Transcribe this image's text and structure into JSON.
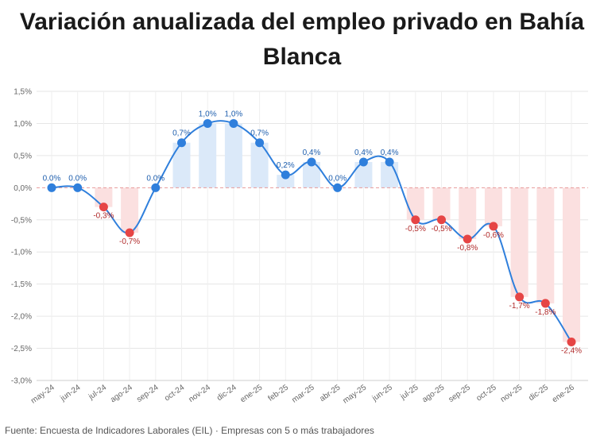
{
  "chart_data": {
    "type": "line",
    "title": "Variación anualizada del empleo privado en Bahía Blanca",
    "xlabel": "",
    "ylabel": "",
    "ylim": [
      -3.0,
      1.5
    ],
    "yticks": [
      1.5,
      1.0,
      0.5,
      0.0,
      -0.5,
      -1.0,
      -1.5,
      -2.0,
      -2.5,
      -3.0
    ],
    "ytick_labels": [
      "1,5%",
      "1,0%",
      "0,5%",
      "0,0%",
      "-0,5%",
      "-1,0%",
      "-1,5%",
      "-2,0%",
      "-2,5%",
      "-3,0%"
    ],
    "categories": [
      "may-24",
      "jun-24",
      "jul-24",
      "ago-24",
      "sep-24",
      "oct-24",
      "nov-24",
      "dic-24",
      "ene-25",
      "feb-25",
      "mar-25",
      "abr-25",
      "may-25",
      "jun-25",
      "jul-25",
      "ago-25",
      "sep-25",
      "oct-25",
      "nov-25",
      "dic-25",
      "ene-26"
    ],
    "series": [
      {
        "name": "Variación anualizada",
        "values": [
          0.0,
          0.0,
          -0.3,
          -0.7,
          0.0,
          0.7,
          1.0,
          1.0,
          0.7,
          0.2,
          0.4,
          0.0,
          0.4,
          0.4,
          -0.5,
          -0.5,
          -0.8,
          -0.6,
          -1.7,
          -1.8,
          -2.4
        ],
        "labels": [
          "0.0%",
          "0.0%",
          "-0,3%",
          "-0,7%",
          "0.0%",
          "0,7%",
          "1,0%",
          "1,0%",
          "0,7%",
          "0,2%",
          "0,4%",
          "0,0%",
          "0,4%",
          "0,4%",
          "-0,5%",
          "-0,5%",
          "-0,8%",
          "-0,6%",
          "-1,7%",
          "-1,8%",
          "-2,4%"
        ]
      }
    ],
    "grid": true,
    "colors": {
      "line": "#2f7fdc",
      "positive_point": "#2f7fdc",
      "negative_point": "#e64545",
      "positive_bar": "#dbe9f9",
      "negative_bar": "#fbe0e0",
      "positive_label": "#1f5fae",
      "negative_label": "#b02a2a",
      "zero_line": "#e89a9a",
      "grid": "#e6e6e6",
      "axis_text": "#666666"
    }
  },
  "footer": "Fuente: Encuesta de Indicadores Laborales (EIL) · Empresas con 5 o más trabajadores"
}
